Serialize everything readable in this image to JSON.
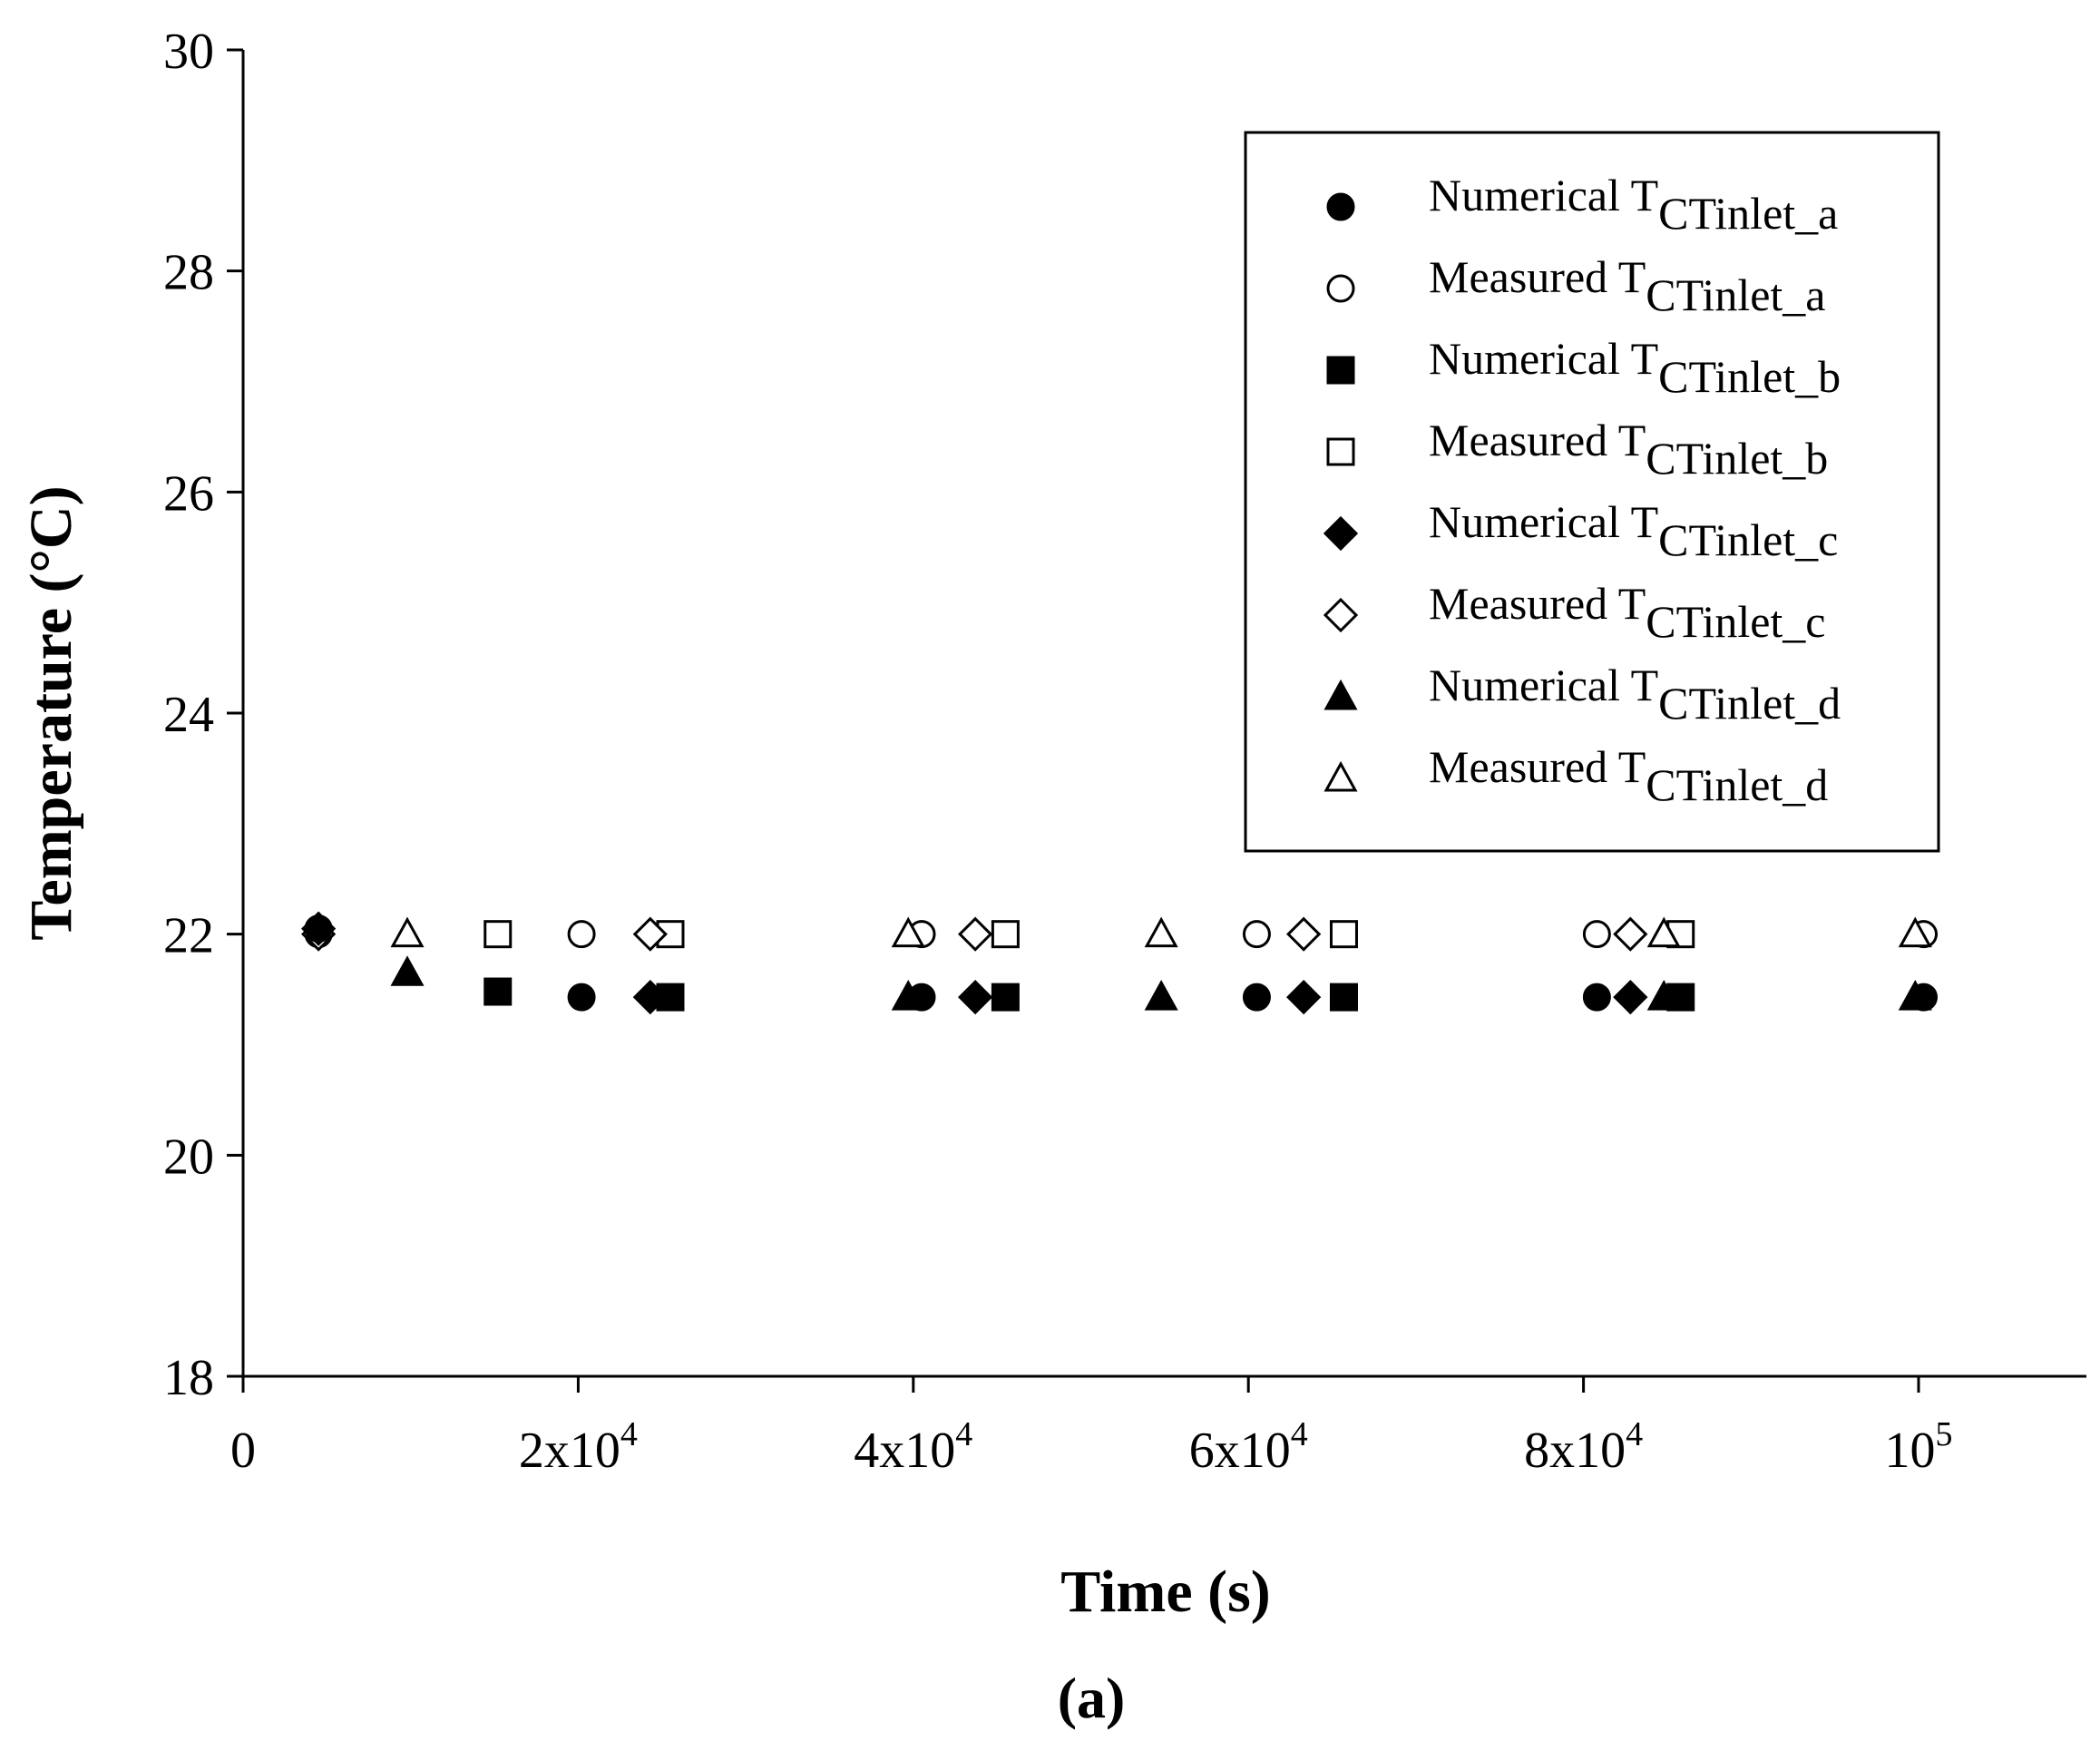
{
  "chart_data": {
    "type": "scatter",
    "title": "",
    "xlabel": "Time (s)",
    "ylabel": "Temperature (°C)",
    "panel_label": "(a)",
    "xlim": [
      0,
      110000
    ],
    "ylim": [
      18,
      30
    ],
    "grid": false,
    "legend_position": "top-right",
    "x_ticks": [
      {
        "value": 0,
        "base": "0",
        "sup": ""
      },
      {
        "value": 20000,
        "base": "2x10",
        "sup": "4"
      },
      {
        "value": 40000,
        "base": "4x10",
        "sup": "4"
      },
      {
        "value": 60000,
        "base": "6x10",
        "sup": "4"
      },
      {
        "value": 80000,
        "base": "8x10",
        "sup": "4"
      },
      {
        "value": 100000,
        "base": "10",
        "sup": "5"
      }
    ],
    "y_ticks": [
      18,
      20,
      22,
      24,
      26,
      28,
      30
    ],
    "series": [
      {
        "name": "Numerical T",
        "sub": "CTinlet_a",
        "marker": "circle",
        "filled": true,
        "points": [
          [
            4500,
            22.05
          ],
          [
            20200,
            21.43
          ],
          [
            40500,
            21.43
          ],
          [
            60500,
            21.43
          ],
          [
            80800,
            21.43
          ],
          [
            100300,
            21.43
          ]
        ]
      },
      {
        "name": "Measured T",
        "sub": "CTinlet_a",
        "marker": "circle",
        "filled": false,
        "points": [
          [
            4500,
            22.0
          ],
          [
            20200,
            22.0
          ],
          [
            40500,
            22.0
          ],
          [
            60500,
            22.0
          ],
          [
            80800,
            22.0
          ],
          [
            100300,
            22.0
          ]
        ]
      },
      {
        "name": "Numerical T",
        "sub": "CTinlet_b",
        "marker": "square",
        "filled": true,
        "points": [
          [
            15200,
            21.48
          ],
          [
            25500,
            21.43
          ],
          [
            45500,
            21.43
          ],
          [
            65700,
            21.43
          ],
          [
            85800,
            21.43
          ]
        ]
      },
      {
        "name": "Measured T",
        "sub": "CTinlet_b",
        "marker": "square",
        "filled": false,
        "points": [
          [
            15200,
            22.0
          ],
          [
            25500,
            22.0
          ],
          [
            45500,
            22.0
          ],
          [
            65700,
            22.0
          ],
          [
            85800,
            22.0
          ]
        ]
      },
      {
        "name": "Numerical T",
        "sub": "CTinlet_c",
        "marker": "diamond",
        "filled": true,
        "points": [
          [
            4500,
            22.05
          ],
          [
            24300,
            21.43
          ],
          [
            43700,
            21.43
          ],
          [
            63300,
            21.43
          ],
          [
            82800,
            21.43
          ]
        ]
      },
      {
        "name": "Measured T",
        "sub": "CTinlet_c",
        "marker": "diamond",
        "filled": false,
        "points": [
          [
            4500,
            22.0
          ],
          [
            24300,
            22.0
          ],
          [
            43700,
            22.0
          ],
          [
            63300,
            22.0
          ],
          [
            82800,
            22.0
          ]
        ]
      },
      {
        "name": "Numerical T",
        "sub": "CTinlet_d",
        "marker": "triangle",
        "filled": true,
        "points": [
          [
            9800,
            21.65
          ],
          [
            39700,
            21.43
          ],
          [
            54800,
            21.43
          ],
          [
            84800,
            21.43
          ],
          [
            99800,
            21.43
          ]
        ]
      },
      {
        "name": "Measured T",
        "sub": "CTinlet_d",
        "marker": "triangle",
        "filled": false,
        "points": [
          [
            9800,
            22.0
          ],
          [
            39700,
            22.0
          ],
          [
            54800,
            22.0
          ],
          [
            84800,
            22.0
          ],
          [
            99800,
            22.0
          ]
        ]
      }
    ]
  }
}
